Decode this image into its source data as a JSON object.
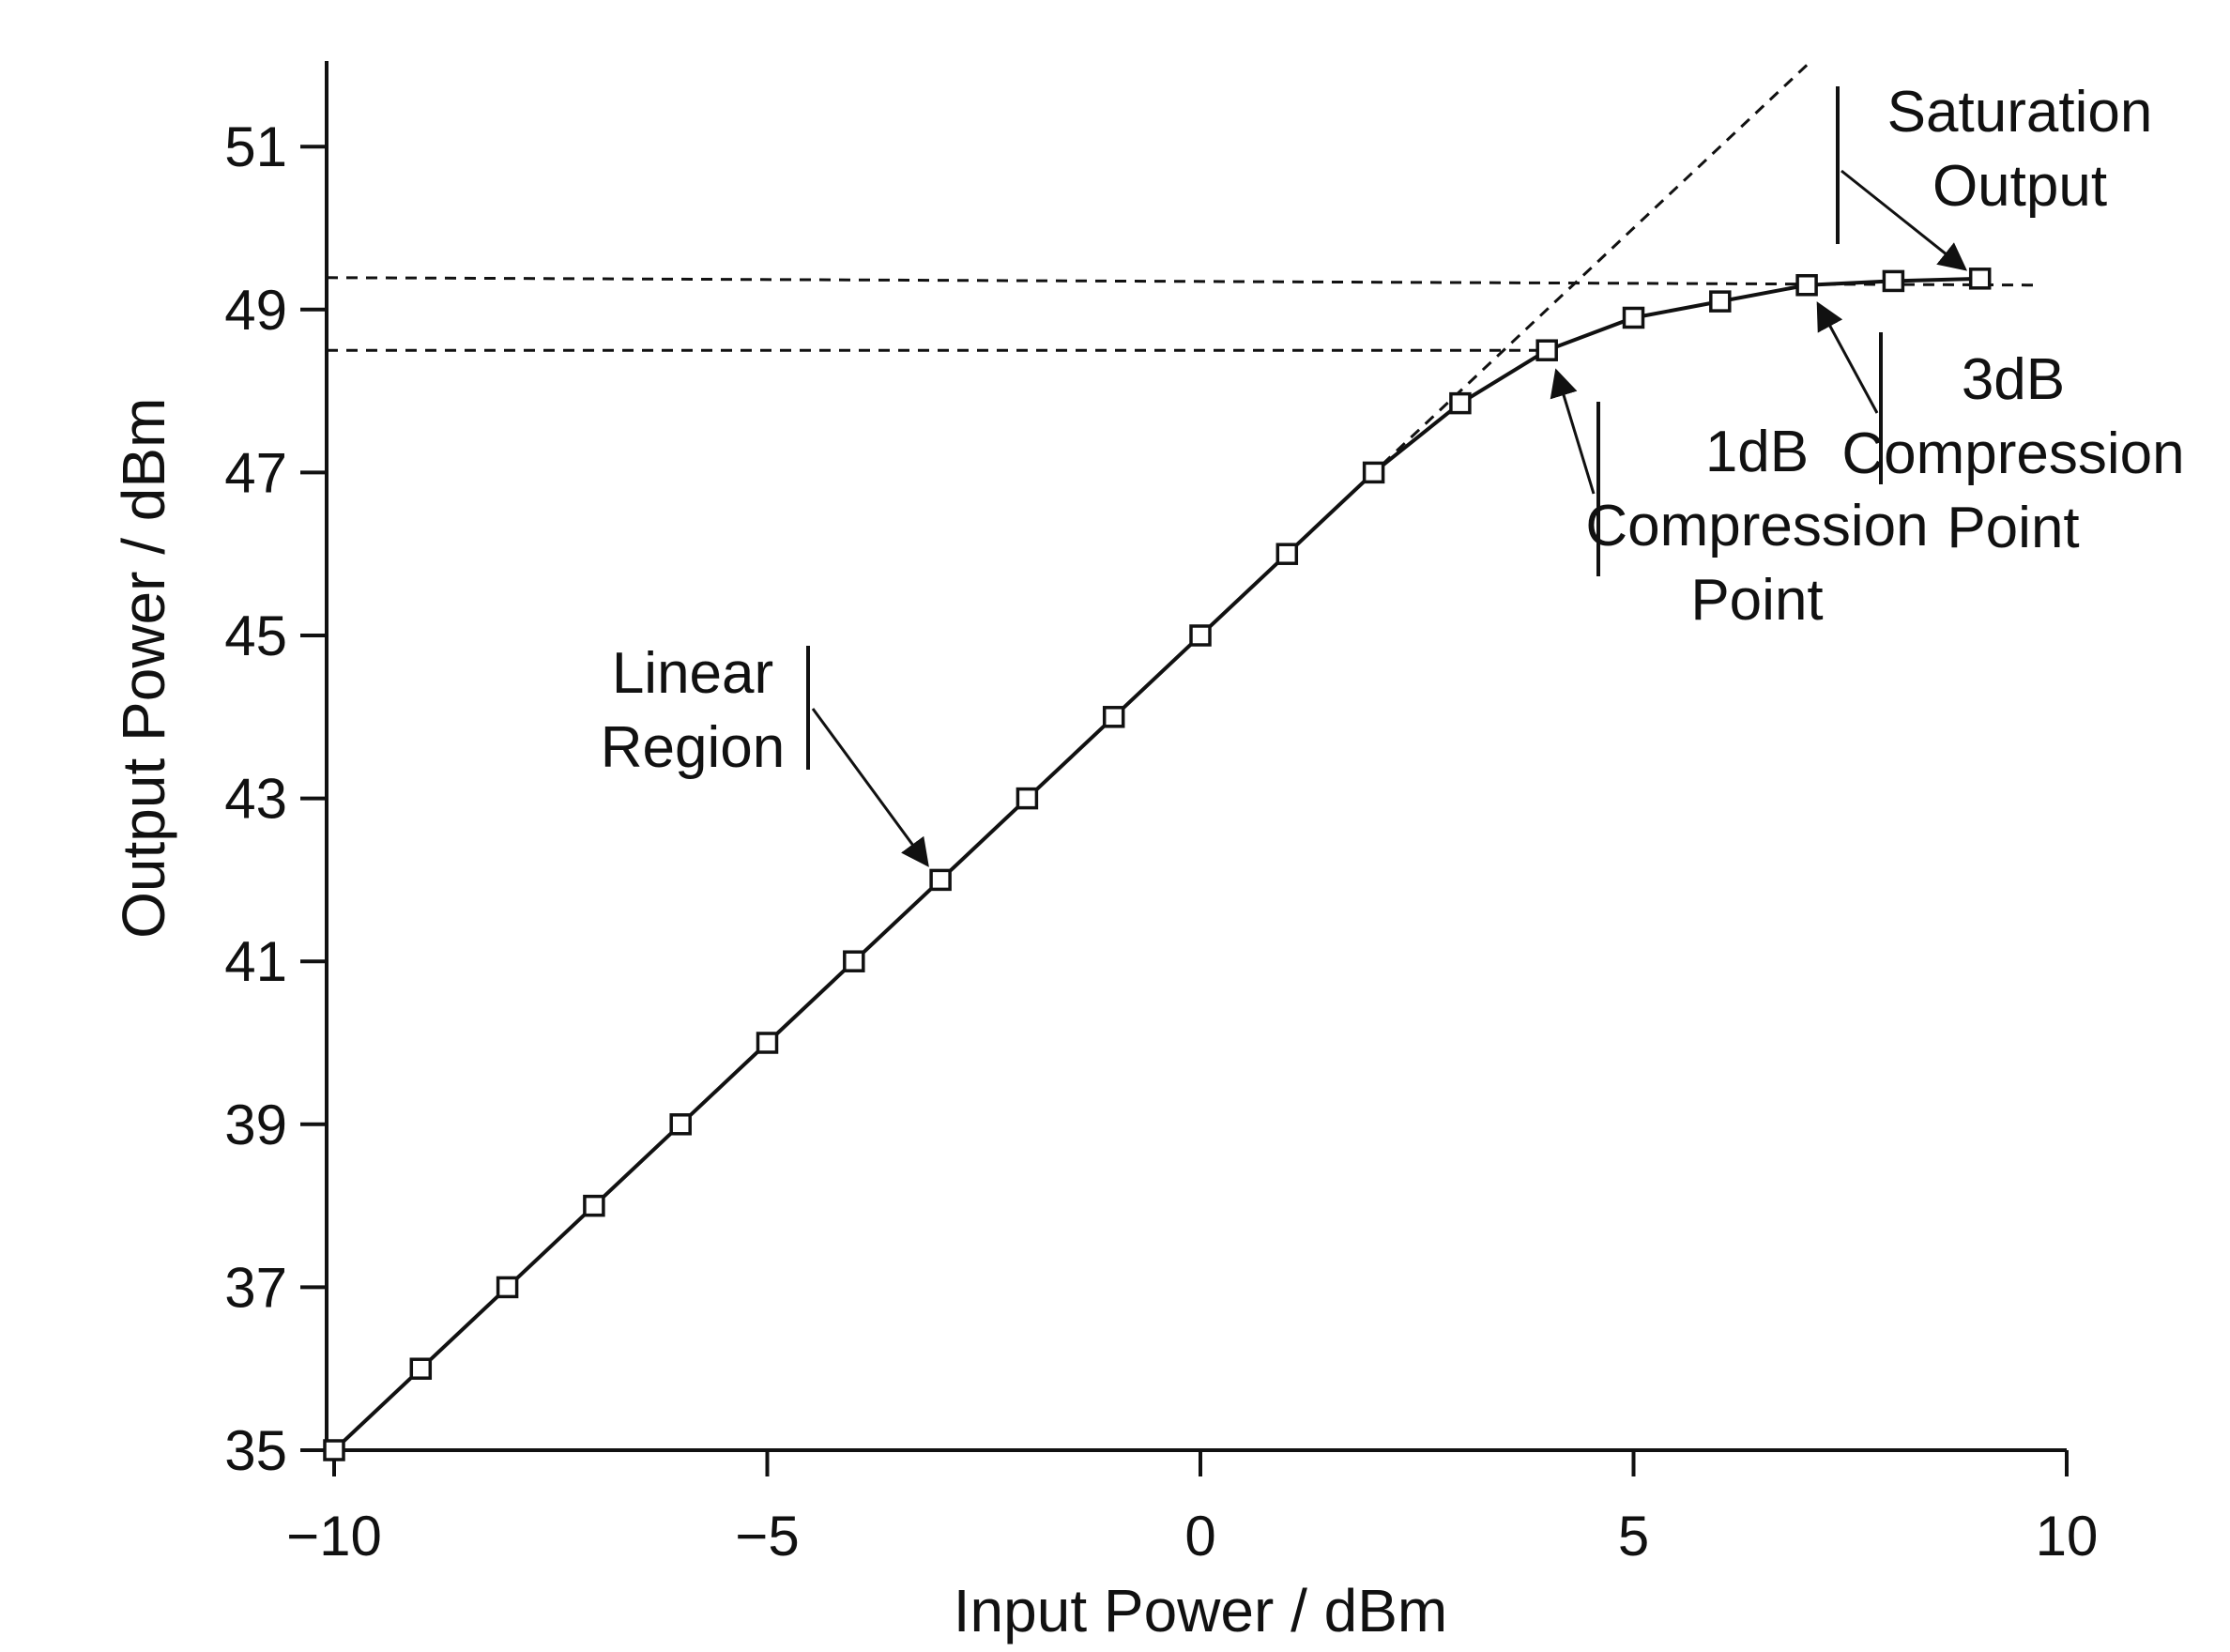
{
  "chart_data": {
    "type": "line",
    "xlabel": "Input Power / dBm",
    "ylabel": "Output Power / dBm",
    "xlim": [
      -10,
      10
    ],
    "ylim": [
      35,
      52
    ],
    "x_ticks": [
      -10,
      -5,
      0,
      5,
      10
    ],
    "x_tick_labels": [
      "−10",
      "−5",
      "0",
      "5",
      "10"
    ],
    "y_ticks": [
      35,
      37,
      39,
      41,
      43,
      45,
      47,
      49,
      51
    ],
    "y_tick_labels": [
      "35",
      "37",
      "39",
      "41",
      "43",
      "45",
      "47",
      "49",
      "51"
    ],
    "grid": false,
    "series": [
      {
        "marker": "square",
        "x": [
          -10,
          -9,
          -8,
          -7,
          -6,
          -5,
          -4,
          -3,
          -2,
          -1,
          0,
          1,
          2,
          3,
          4,
          5,
          6,
          7,
          8,
          9
        ],
        "y": [
          35.0,
          36.0,
          37.0,
          38.0,
          39.0,
          40.0,
          41.0,
          42.0,
          43.0,
          44.0,
          45.0,
          46.0,
          47.0,
          47.85,
          48.5,
          48.9,
          49.1,
          49.3,
          49.35,
          49.38
        ]
      }
    ],
    "reference_lines": {
      "linear_extrapolation": {
        "style": "dashed",
        "slope": 1,
        "intercept": 45,
        "x_range": [
          -10,
          7
        ]
      },
      "compression_1db": {
        "style": "dashed",
        "y": 48.5,
        "x_range": [
          -10,
          4
        ]
      },
      "saturation": {
        "style": "dashed",
        "y": 49.3,
        "x_range": [
          -10,
          9.7
        ]
      }
    },
    "annotations": [
      {
        "id": "linear",
        "lines": [
          "Linear",
          "Region"
        ],
        "points_to": [
          -3,
          42
        ]
      },
      {
        "id": "db1",
        "lines": [
          "1dB",
          "Compression",
          "Point"
        ],
        "points_to": [
          4,
          48.5
        ]
      },
      {
        "id": "db3",
        "lines": [
          "3dB",
          "Compression",
          "Point"
        ],
        "points_to": [
          7,
          49.3
        ]
      },
      {
        "id": "sat",
        "lines": [
          "Saturation",
          "Output"
        ],
        "points_to": [
          9,
          49.38
        ]
      }
    ]
  },
  "colors": {
    "ink": "#111111",
    "background": "#ffffff"
  }
}
